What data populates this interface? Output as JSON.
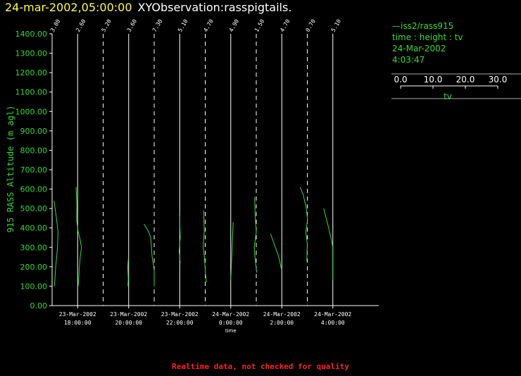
{
  "header": {
    "datetime": "24-mar-2002,05:00:00",
    "title": "XYObservation:rasspigtails."
  },
  "legend": {
    "series_line": "—iss2/rass915",
    "vars": "time : height : tv",
    "date": "24-Mar-2002",
    "time": "4:03:47",
    "scale_ticks": [
      "0.0",
      "10.0",
      "20.0",
      "30.0"
    ],
    "scale_label": "tv"
  },
  "footer": "Realtime data, not checked for quality",
  "colors": {
    "axis": "#ffffff",
    "data": "#33dd33",
    "ticklabel": "#33dd33",
    "title_date": "#ffff33",
    "footer": "#ff2222"
  },
  "chart_data": {
    "type": "line",
    "ylabel": "915 RASS Altitude (m agl)",
    "xlabel": "time",
    "ylim": [
      0,
      1400
    ],
    "y_ticks": [
      "0.00",
      "100.00",
      "200.00",
      "300.00",
      "400.00",
      "500.00",
      "600.00",
      "700.00",
      "800.00",
      "900.00",
      "1000.00",
      "1100.00",
      "1200.00",
      "1300.00",
      "1400.00"
    ],
    "x_ticks": [
      {
        "date": "23-Mar-2002",
        "time": "18:00:00",
        "hour": 0
      },
      {
        "date": "23-Mar-2002",
        "time": "20:00:00",
        "hour": 2
      },
      {
        "date": "23-Mar-2002",
        "time": "22:00:00",
        "hour": 4
      },
      {
        "date": "24-Mar-2002",
        "time": "0:00:00",
        "hour": 6
      },
      {
        "date": "24-Mar-2002",
        "time": "2:00:00",
        "hour": 8
      },
      {
        "date": "24-Mar-2002",
        "time": "4:00:00",
        "hour": 10
      }
    ],
    "xlim_hours": [
      -1.0,
      11.8
    ],
    "tv_per_hour": 25,
    "profiles": [
      {
        "hour": -1.0,
        "base_label": "3.80",
        "dashed": false,
        "points": [
          [
            2.4,
            100
          ],
          [
            2.9,
            150
          ],
          [
            3.5,
            200
          ],
          [
            5.3,
            300
          ],
          [
            5.8,
            380
          ],
          [
            4.3,
            450
          ],
          [
            2.7,
            510
          ],
          [
            1.8,
            540
          ]
        ]
      },
      {
        "hour": 0.0,
        "base_label": "2.60",
        "dashed": false,
        "points": [
          [
            -1.5,
            610
          ],
          [
            -0.8,
            520
          ],
          [
            -1.0,
            440
          ],
          [
            0.5,
            380
          ],
          [
            2.0,
            350
          ],
          [
            3.8,
            300
          ],
          [
            2.5,
            250
          ],
          [
            1.6,
            190
          ],
          [
            1.2,
            150
          ],
          [
            0.5,
            100
          ]
        ]
      },
      {
        "hour": 1.0,
        "base_label": "5.20",
        "dashed": true,
        "points": []
      },
      {
        "hour": 2.0,
        "base_label": "3.60",
        "dashed": false,
        "points": [
          [
            -0.7,
            100
          ],
          [
            -0.4,
            140
          ],
          [
            -0.9,
            200
          ],
          [
            -0.3,
            240
          ]
        ]
      },
      {
        "hour": 3.0,
        "base_label": "7.30",
        "dashed": true,
        "points": [
          [
            -10.0,
            420
          ],
          [
            -5.4,
            380
          ],
          [
            -3.4,
            350
          ],
          [
            -2.0,
            250
          ],
          [
            -0.5,
            200
          ],
          [
            0,
            180
          ],
          [
            0,
            100
          ]
        ]
      },
      {
        "hour": 4.0,
        "base_label": "5.10",
        "dashed": false,
        "points": [
          [
            -0.3,
            470
          ],
          [
            0,
            430
          ],
          [
            0.5,
            350
          ],
          [
            -0.6,
            280
          ],
          [
            0.5,
            220
          ]
        ]
      },
      {
        "hour": 5.0,
        "base_label": "4.70",
        "dashed": true,
        "points": [
          [
            -1.6,
            490
          ],
          [
            -1.0,
            380
          ],
          [
            -2.0,
            300
          ],
          [
            -0.6,
            240
          ],
          [
            0.3,
            160
          ],
          [
            1.2,
            120
          ]
        ]
      },
      {
        "hour": 6.0,
        "base_label": "4.90",
        "dashed": false,
        "points": [
          [
            2.4,
            430
          ],
          [
            1.5,
            320
          ],
          [
            0.6,
            200
          ],
          [
            0,
            130
          ]
        ]
      },
      {
        "hour": 7.0,
        "base_label": "1.50",
        "dashed": true,
        "points": [
          [
            -1.5,
            560
          ],
          [
            -1.2,
            470
          ],
          [
            0,
            380
          ],
          [
            -2.0,
            300
          ],
          [
            -1.0,
            230
          ],
          [
            0.5,
            170
          ]
        ]
      },
      {
        "hour": 8.0,
        "base_label": "4.70",
        "dashed": false,
        "points": [
          [
            -11.0,
            370
          ],
          [
            -7.0,
            310
          ],
          [
            -3.5,
            260
          ],
          [
            0,
            180
          ]
        ]
      },
      {
        "hour": 9.0,
        "base_label": "0.70",
        "dashed": true,
        "points": [
          [
            -7.0,
            610
          ],
          [
            -4.0,
            570
          ],
          [
            -1.0,
            500
          ],
          [
            0.2,
            440
          ],
          [
            -1.5,
            380
          ],
          [
            0,
            320
          ],
          [
            -0.5,
            230
          ]
        ]
      },
      {
        "hour": 10.0,
        "base_label": "5.10",
        "dashed": false,
        "points": [
          [
            -9.0,
            500
          ],
          [
            -5.0,
            420
          ],
          [
            -2.0,
            350
          ],
          [
            0,
            300
          ],
          [
            0,
            130
          ]
        ]
      }
    ]
  }
}
